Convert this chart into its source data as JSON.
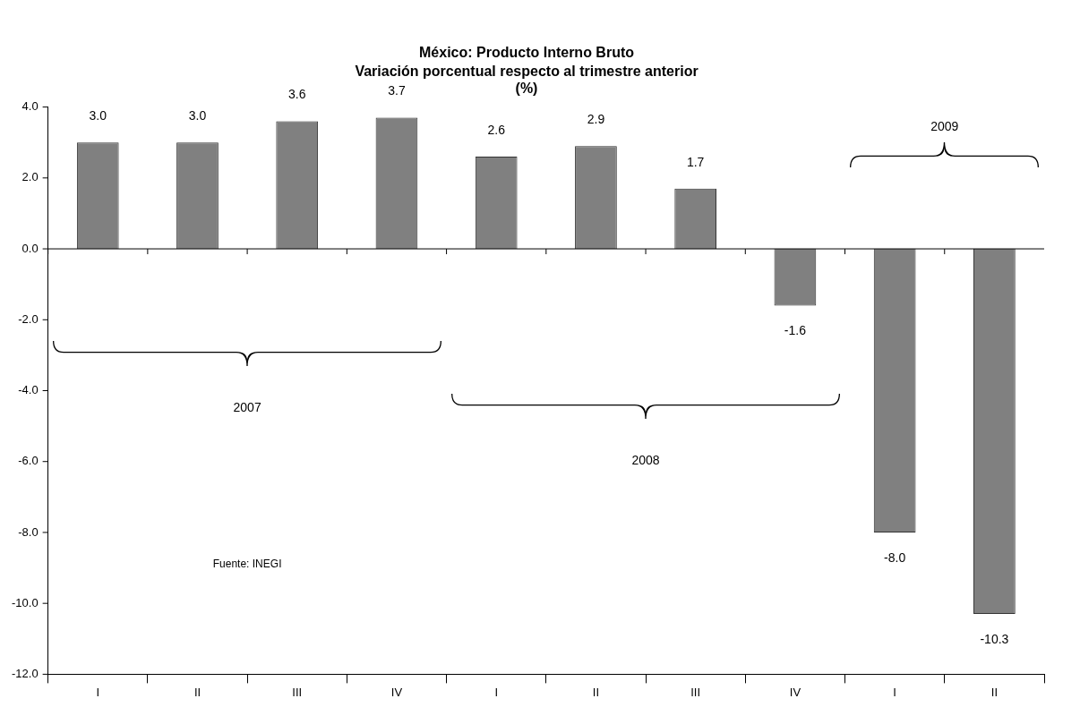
{
  "chart_data": {
    "type": "bar",
    "title": "México: Producto Interno Bruto",
    "subtitle": "Variación porcentual respecto al trimestre anterior",
    "ylabel": "(%)",
    "categories": [
      "I",
      "II",
      "III",
      "IV",
      "I",
      "II",
      "III",
      "IV",
      "I",
      "II"
    ],
    "values": [
      3.0,
      3.0,
      3.6,
      3.7,
      2.6,
      2.9,
      1.7,
      -1.6,
      -8.0,
      -10.3
    ],
    "color": "#808080",
    "value_labels": [
      "3.0",
      "3.0",
      "3.6",
      "3.7",
      "2.6",
      "2.9",
      "1.7",
      "-1.6",
      "-8.0",
      "-10.3"
    ],
    "ylim": [
      -12,
      4
    ],
    "yticks": [
      {
        "value": -12,
        "label": "-12.0"
      },
      {
        "value": -10,
        "label": "-10.0"
      },
      {
        "value": -8,
        "label": "-8.0"
      },
      {
        "value": -6,
        "label": "-6.0"
      },
      {
        "value": -4,
        "label": "-4.0"
      },
      {
        "value": -2,
        "label": "-2.0"
      },
      {
        "value": 0,
        "label": "0.0"
      },
      {
        "value": 2,
        "label": "2.0"
      },
      {
        "value": 4,
        "label": "4.0"
      }
    ],
    "grid": false,
    "legend": false,
    "ref_lines": [
      {
        "axis": "y",
        "value": 0,
        "color": "#000000"
      }
    ],
    "annotations": [
      "2007",
      "2008",
      "2009",
      "Fuente: INEGI"
    ]
  }
}
